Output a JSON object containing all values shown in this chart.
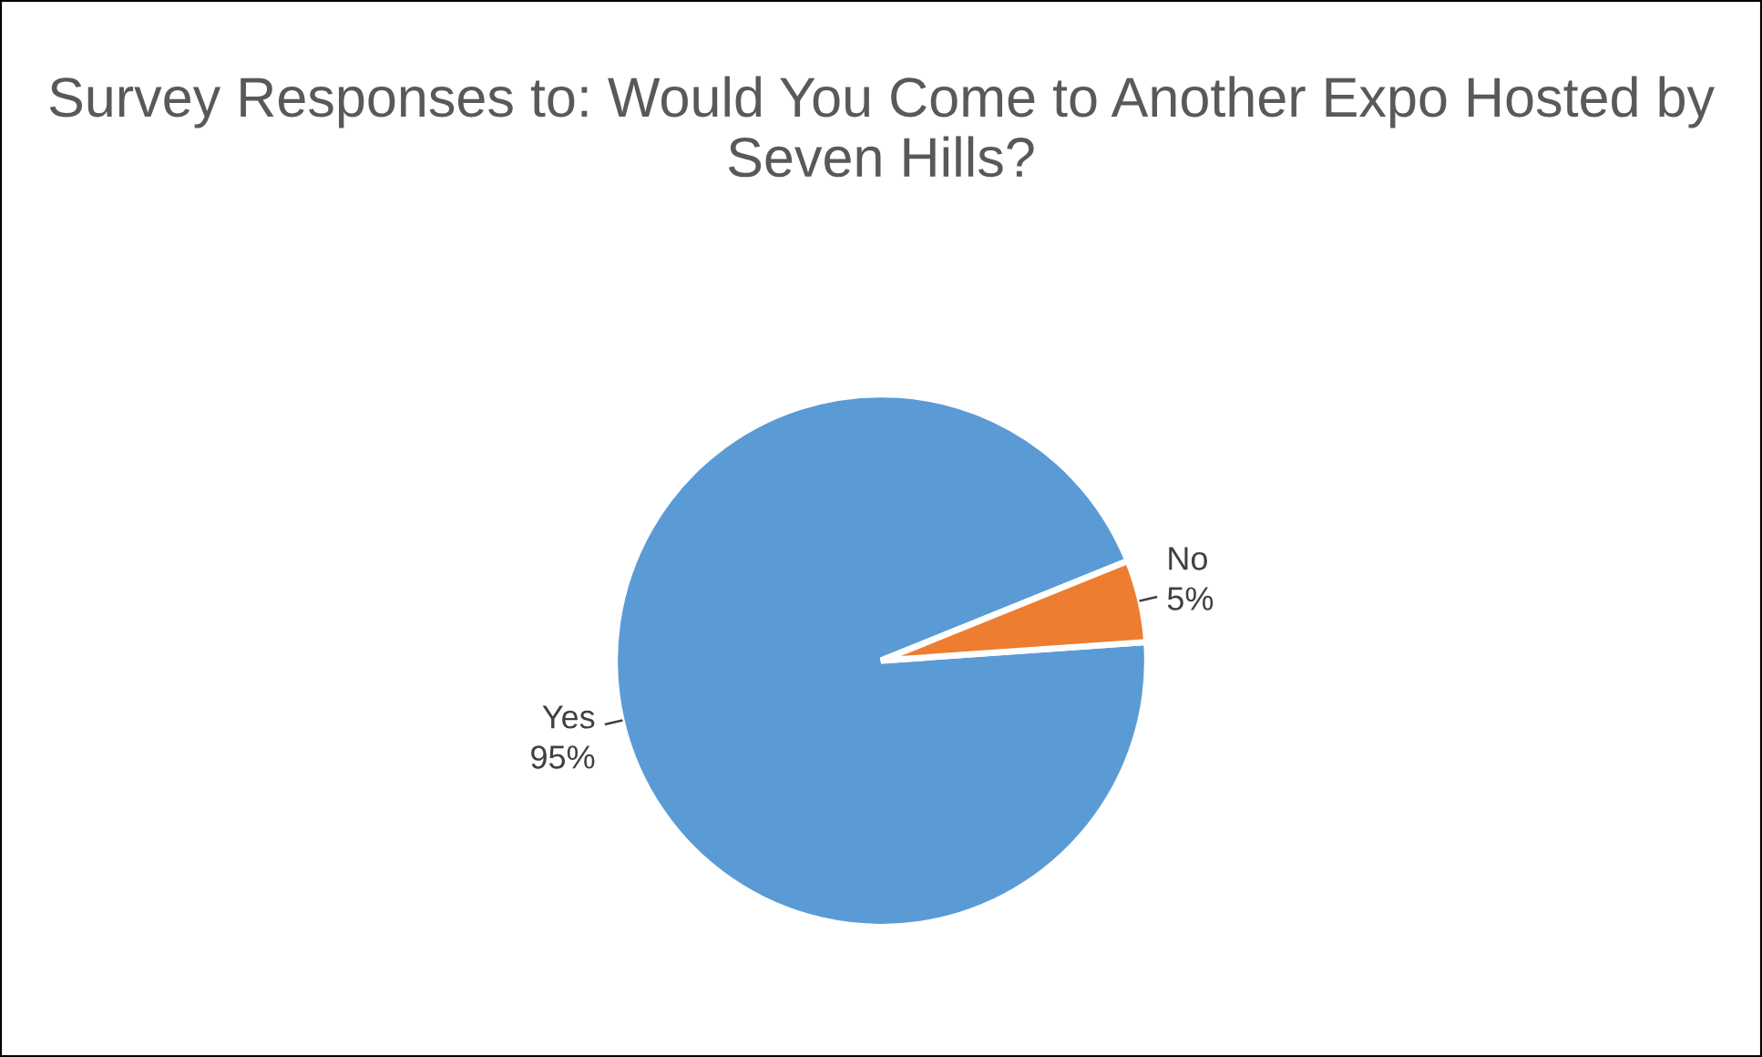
{
  "chart_data": {
    "type": "pie",
    "title": "Survey Responses to: Would You Come to Another Expo Hosted by Seven Hills?",
    "categories": [
      "Yes",
      "No"
    ],
    "values": [
      95,
      5
    ],
    "colors": [
      "#5b9bd5",
      "#ed7d31"
    ],
    "value_labels": [
      "95%",
      "5%"
    ],
    "legend": false
  }
}
